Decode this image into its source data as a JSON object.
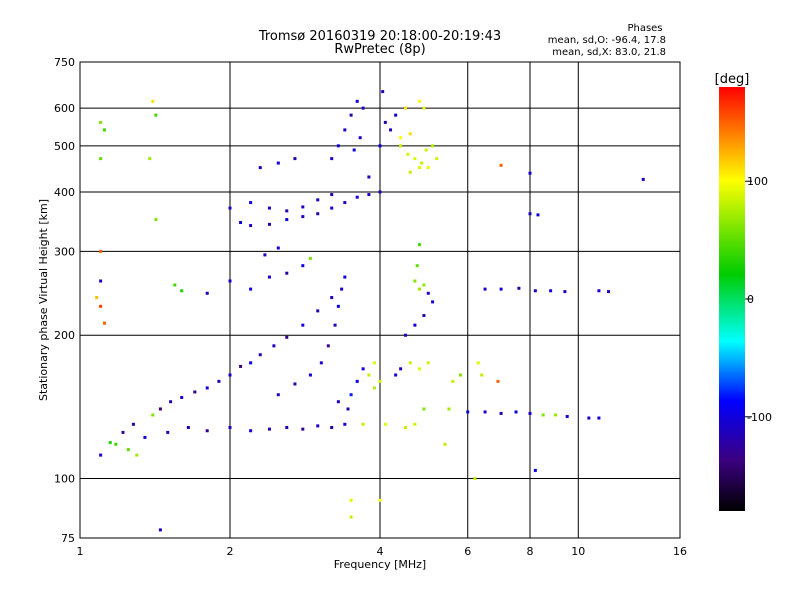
{
  "header": {
    "title_line1": "Tromsø 20160319 20:18:00-20:19:43",
    "title_line2": "RwPretec (8p)",
    "stats_title": "Phases",
    "stats_o": "mean, sd,O: -96.4, 17.8",
    "stats_x": "mean, sd,X: 83.0, 21.8"
  },
  "colorbar": {
    "unit_label": "[deg]",
    "range": [
      -180,
      180
    ],
    "ticks": [
      {
        "value": 100,
        "label": "100"
      },
      {
        "value": 0,
        "label": "0"
      },
      {
        "value": -100,
        "label": "-100"
      }
    ]
  },
  "chart_data": {
    "type": "scatter",
    "xlabel": "Frequency [MHz]",
    "ylabel": "Stationary phase Virtual Height [km]",
    "xscale": "log",
    "yscale": "log",
    "xlim": [
      1,
      16
    ],
    "ylim": [
      75,
      750
    ],
    "grid": true,
    "x_ticks": [
      {
        "value": 1,
        "label": "1"
      },
      {
        "value": 2,
        "label": "2"
      },
      {
        "value": 4,
        "label": "4"
      },
      {
        "value": 6,
        "label": "6"
      },
      {
        "value": 8,
        "label": "8"
      },
      {
        "value": 10,
        "label": "10"
      },
      {
        "value": 16,
        "label": "16"
      }
    ],
    "x_gridlines": [
      2,
      4,
      6,
      8,
      10
    ],
    "y_ticks": [
      {
        "value": 75,
        "label": "75"
      },
      {
        "value": 100,
        "label": "100"
      },
      {
        "value": 200,
        "label": "200"
      },
      {
        "value": 300,
        "label": "300"
      },
      {
        "value": 400,
        "label": "400"
      },
      {
        "value": 500,
        "label": "500"
      },
      {
        "value": 600,
        "label": "600"
      },
      {
        "value": 750,
        "label": "750"
      }
    ],
    "y_gridlines": [
      100,
      200,
      300,
      400,
      500,
      600
    ],
    "points": [
      {
        "x": 1.1,
        "y": 112,
        "phase": -110
      },
      {
        "x": 1.18,
        "y": 118,
        "phase": 40
      },
      {
        "x": 1.22,
        "y": 125,
        "phase": -130
      },
      {
        "x": 1.28,
        "y": 130,
        "phase": -120
      },
      {
        "x": 1.35,
        "y": 122,
        "phase": -100
      },
      {
        "x": 1.4,
        "y": 136,
        "phase": 60
      },
      {
        "x": 1.45,
        "y": 140,
        "phase": -140
      },
      {
        "x": 1.52,
        "y": 145,
        "phase": -120
      },
      {
        "x": 1.6,
        "y": 148,
        "phase": -110
      },
      {
        "x": 1.7,
        "y": 152,
        "phase": -130
      },
      {
        "x": 1.8,
        "y": 155,
        "phase": -100
      },
      {
        "x": 1.9,
        "y": 160,
        "phase": -120
      },
      {
        "x": 2.0,
        "y": 165,
        "phase": -110
      },
      {
        "x": 2.1,
        "y": 172,
        "phase": -140
      },
      {
        "x": 2.2,
        "y": 175,
        "phase": -100
      },
      {
        "x": 2.3,
        "y": 182,
        "phase": -120
      },
      {
        "x": 2.45,
        "y": 190,
        "phase": -110
      },
      {
        "x": 2.6,
        "y": 198,
        "phase": -130
      },
      {
        "x": 2.8,
        "y": 210,
        "phase": -100
      },
      {
        "x": 3.0,
        "y": 225,
        "phase": -120
      },
      {
        "x": 3.2,
        "y": 240,
        "phase": -110
      },
      {
        "x": 1.25,
        "y": 115,
        "phase": 50
      },
      {
        "x": 1.3,
        "y": 112,
        "phase": 70
      },
      {
        "x": 1.15,
        "y": 119,
        "phase": 30
      },
      {
        "x": 1.5,
        "y": 125,
        "phase": -115
      },
      {
        "x": 1.65,
        "y": 128,
        "phase": -105
      },
      {
        "x": 1.8,
        "y": 126,
        "phase": -125
      },
      {
        "x": 2.0,
        "y": 128,
        "phase": -110
      },
      {
        "x": 2.2,
        "y": 126,
        "phase": -100
      },
      {
        "x": 2.4,
        "y": 127,
        "phase": -120
      },
      {
        "x": 2.6,
        "y": 128,
        "phase": -110
      },
      {
        "x": 2.8,
        "y": 127,
        "phase": -130
      },
      {
        "x": 3.0,
        "y": 129,
        "phase": -105
      },
      {
        "x": 3.2,
        "y": 128,
        "phase": -115
      },
      {
        "x": 3.4,
        "y": 130,
        "phase": -100
      },
      {
        "x": 2.5,
        "y": 150,
        "phase": -110
      },
      {
        "x": 2.7,
        "y": 158,
        "phase": -120
      },
      {
        "x": 2.9,
        "y": 165,
        "phase": -100
      },
      {
        "x": 3.05,
        "y": 175,
        "phase": -110
      },
      {
        "x": 3.15,
        "y": 190,
        "phase": -130
      },
      {
        "x": 3.25,
        "y": 210,
        "phase": -120
      },
      {
        "x": 3.3,
        "y": 230,
        "phase": -100
      },
      {
        "x": 3.35,
        "y": 250,
        "phase": -110
      },
      {
        "x": 3.4,
        "y": 265,
        "phase": -100
      },
      {
        "x": 3.5,
        "y": 150,
        "phase": -80
      },
      {
        "x": 3.6,
        "y": 160,
        "phase": -90
      },
      {
        "x": 3.7,
        "y": 170,
        "phase": -100
      },
      {
        "x": 3.3,
        "y": 145,
        "phase": -110
      },
      {
        "x": 3.45,
        "y": 140,
        "phase": -120
      },
      {
        "x": 3.8,
        "y": 165,
        "phase": 80
      },
      {
        "x": 3.9,
        "y": 175,
        "phase": 90
      },
      {
        "x": 4.0,
        "y": 160,
        "phase": 85
      },
      {
        "x": 3.7,
        "y": 130,
        "phase": 80
      },
      {
        "x": 4.1,
        "y": 130,
        "phase": 90
      },
      {
        "x": 3.9,
        "y": 155,
        "phase": 75
      },
      {
        "x": 4.5,
        "y": 128,
        "phase": 80
      },
      {
        "x": 4.7,
        "y": 130,
        "phase": 85
      },
      {
        "x": 4.9,
        "y": 140,
        "phase": 60
      },
      {
        "x": 4.6,
        "y": 175,
        "phase": 80
      },
      {
        "x": 4.8,
        "y": 170,
        "phase": 90
      },
      {
        "x": 5.0,
        "y": 175,
        "phase": 85
      },
      {
        "x": 4.3,
        "y": 165,
        "phase": -100
      },
      {
        "x": 4.4,
        "y": 170,
        "phase": -110
      },
      {
        "x": 4.5,
        "y": 200,
        "phase": -110
      },
      {
        "x": 4.7,
        "y": 210,
        "phase": -100
      },
      {
        "x": 4.9,
        "y": 220,
        "phase": -120
      },
      {
        "x": 5.0,
        "y": 245,
        "phase": -110
      },
      {
        "x": 5.1,
        "y": 235,
        "phase": -100
      },
      {
        "x": 4.7,
        "y": 260,
        "phase": 60
      },
      {
        "x": 4.8,
        "y": 250,
        "phase": 70
      },
      {
        "x": 4.75,
        "y": 280,
        "phase": 50
      },
      {
        "x": 4.8,
        "y": 310,
        "phase": 40
      },
      {
        "x": 4.9,
        "y": 255,
        "phase": 65
      },
      {
        "x": 5.5,
        "y": 140,
        "phase": 70
      },
      {
        "x": 5.6,
        "y": 160,
        "phase": 80
      },
      {
        "x": 5.8,
        "y": 165,
        "phase": 60
      },
      {
        "x": 6.3,
        "y": 175,
        "phase": 90
      },
      {
        "x": 6.4,
        "y": 165,
        "phase": 80
      },
      {
        "x": 6.0,
        "y": 138,
        "phase": -100
      },
      {
        "x": 6.5,
        "y": 138,
        "phase": -110
      },
      {
        "x": 7.0,
        "y": 137,
        "phase": -120
      },
      {
        "x": 7.5,
        "y": 138,
        "phase": -100
      },
      {
        "x": 8.0,
        "y": 137,
        "phase": -110
      },
      {
        "x": 8.5,
        "y": 136,
        "phase": 60
      },
      {
        "x": 9.0,
        "y": 136,
        "phase": 70
      },
      {
        "x": 9.5,
        "y": 135,
        "phase": -100
      },
      {
        "x": 10.5,
        "y": 134,
        "phase": -110
      },
      {
        "x": 11.0,
        "y": 134,
        "phase": -100
      },
      {
        "x": 6.5,
        "y": 250,
        "phase": -110
      },
      {
        "x": 7.0,
        "y": 250,
        "phase": -100
      },
      {
        "x": 7.6,
        "y": 251,
        "phase": -120
      },
      {
        "x": 8.2,
        "y": 248,
        "phase": -110
      },
      {
        "x": 8.8,
        "y": 248,
        "phase": -100
      },
      {
        "x": 9.4,
        "y": 247,
        "phase": -110
      },
      {
        "x": 11.0,
        "y": 248,
        "phase": -100
      },
      {
        "x": 11.5,
        "y": 247,
        "phase": -110
      },
      {
        "x": 8.0,
        "y": 360,
        "phase": -110
      },
      {
        "x": 8.3,
        "y": 358,
        "phase": -100
      },
      {
        "x": 8.0,
        "y": 438,
        "phase": -100
      },
      {
        "x": 13.5,
        "y": 425,
        "phase": -110
      },
      {
        "x": 2.0,
        "y": 370,
        "phase": -110
      },
      {
        "x": 2.1,
        "y": 345,
        "phase": -100
      },
      {
        "x": 2.2,
        "y": 340,
        "phase": -110
      },
      {
        "x": 2.4,
        "y": 342,
        "phase": -120
      },
      {
        "x": 2.6,
        "y": 350,
        "phase": -100
      },
      {
        "x": 2.8,
        "y": 355,
        "phase": -110
      },
      {
        "x": 3.0,
        "y": 360,
        "phase": -120
      },
      {
        "x": 3.2,
        "y": 370,
        "phase": -100
      },
      {
        "x": 3.4,
        "y": 380,
        "phase": -110
      },
      {
        "x": 3.6,
        "y": 390,
        "phase": -100
      },
      {
        "x": 3.8,
        "y": 395,
        "phase": -110
      },
      {
        "x": 4.0,
        "y": 400,
        "phase": -120
      },
      {
        "x": 2.2,
        "y": 380,
        "phase": -100
      },
      {
        "x": 2.4,
        "y": 370,
        "phase": -110
      },
      {
        "x": 2.6,
        "y": 365,
        "phase": -120
      },
      {
        "x": 2.8,
        "y": 372,
        "phase": -110
      },
      {
        "x": 3.0,
        "y": 385,
        "phase": -100
      },
      {
        "x": 3.2,
        "y": 395,
        "phase": -110
      },
      {
        "x": 2.3,
        "y": 450,
        "phase": -110
      },
      {
        "x": 2.5,
        "y": 460,
        "phase": -100
      },
      {
        "x": 2.7,
        "y": 470,
        "phase": -120
      },
      {
        "x": 3.2,
        "y": 470,
        "phase": -110
      },
      {
        "x": 3.3,
        "y": 500,
        "phase": -100
      },
      {
        "x": 3.4,
        "y": 540,
        "phase": -110
      },
      {
        "x": 3.5,
        "y": 580,
        "phase": -120
      },
      {
        "x": 3.6,
        "y": 620,
        "phase": -100
      },
      {
        "x": 3.7,
        "y": 600,
        "phase": -110
      },
      {
        "x": 3.65,
        "y": 520,
        "phase": -110
      },
      {
        "x": 3.55,
        "y": 490,
        "phase": -100
      },
      {
        "x": 3.8,
        "y": 430,
        "phase": -110
      },
      {
        "x": 4.0,
        "y": 500,
        "phase": -100
      },
      {
        "x": 4.05,
        "y": 650,
        "phase": -110
      },
      {
        "x": 4.1,
        "y": 560,
        "phase": -120
      },
      {
        "x": 4.2,
        "y": 540,
        "phase": -110
      },
      {
        "x": 4.3,
        "y": 580,
        "phase": -100
      },
      {
        "x": 4.4,
        "y": 500,
        "phase": 80
      },
      {
        "x": 4.55,
        "y": 480,
        "phase": 85
      },
      {
        "x": 4.7,
        "y": 470,
        "phase": 90
      },
      {
        "x": 4.85,
        "y": 460,
        "phase": 80
      },
      {
        "x": 4.95,
        "y": 490,
        "phase": 85
      },
      {
        "x": 5.1,
        "y": 500,
        "phase": 75
      },
      {
        "x": 4.6,
        "y": 440,
        "phase": 80
      },
      {
        "x": 4.8,
        "y": 450,
        "phase": 90
      },
      {
        "x": 4.4,
        "y": 520,
        "phase": 100
      },
      {
        "x": 4.6,
        "y": 530,
        "phase": 110
      },
      {
        "x": 5.0,
        "y": 450,
        "phase": 95
      },
      {
        "x": 5.2,
        "y": 470,
        "phase": 85
      },
      {
        "x": 4.8,
        "y": 620,
        "phase": 100
      },
      {
        "x": 4.9,
        "y": 600,
        "phase": 90
      },
      {
        "x": 4.5,
        "y": 600,
        "phase": 110
      },
      {
        "x": 1.1,
        "y": 560,
        "phase": 60
      },
      {
        "x": 1.12,
        "y": 540,
        "phase": 40
      },
      {
        "x": 1.1,
        "y": 470,
        "phase": 50
      },
      {
        "x": 1.4,
        "y": 620,
        "phase": 110
      },
      {
        "x": 1.42,
        "y": 580,
        "phase": 40
      },
      {
        "x": 1.38,
        "y": 470,
        "phase": 70
      },
      {
        "x": 1.42,
        "y": 350,
        "phase": 60
      },
      {
        "x": 1.55,
        "y": 255,
        "phase": 40
      },
      {
        "x": 1.6,
        "y": 248,
        "phase": 30
      },
      {
        "x": 1.8,
        "y": 245,
        "phase": -110
      },
      {
        "x": 1.1,
        "y": 260,
        "phase": -110
      },
      {
        "x": 1.1,
        "y": 230,
        "phase": 160
      },
      {
        "x": 1.12,
        "y": 212,
        "phase": 150
      },
      {
        "x": 1.08,
        "y": 240,
        "phase": 120
      },
      {
        "x": 1.1,
        "y": 300,
        "phase": 150
      },
      {
        "x": 2.0,
        "y": 260,
        "phase": -110
      },
      {
        "x": 2.2,
        "y": 250,
        "phase": -100
      },
      {
        "x": 2.4,
        "y": 265,
        "phase": -110
      },
      {
        "x": 2.6,
        "y": 270,
        "phase": -120
      },
      {
        "x": 2.8,
        "y": 280,
        "phase": -100
      },
      {
        "x": 2.9,
        "y": 290,
        "phase": 60
      },
      {
        "x": 2.35,
        "y": 295,
        "phase": -110
      },
      {
        "x": 2.5,
        "y": 305,
        "phase": -100
      },
      {
        "x": 3.5,
        "y": 90,
        "phase": 90
      },
      {
        "x": 3.5,
        "y": 83,
        "phase": 80
      },
      {
        "x": 4.0,
        "y": 90,
        "phase": 100
      },
      {
        "x": 1.45,
        "y": 78,
        "phase": -110
      },
      {
        "x": 6.9,
        "y": 160,
        "phase": 150
      },
      {
        "x": 5.4,
        "y": 118,
        "phase": 80
      },
      {
        "x": 6.2,
        "y": 100,
        "phase": 80
      },
      {
        "x": 8.2,
        "y": 104,
        "phase": -100
      },
      {
        "x": 7.0,
        "y": 455,
        "phase": 150
      }
    ]
  }
}
